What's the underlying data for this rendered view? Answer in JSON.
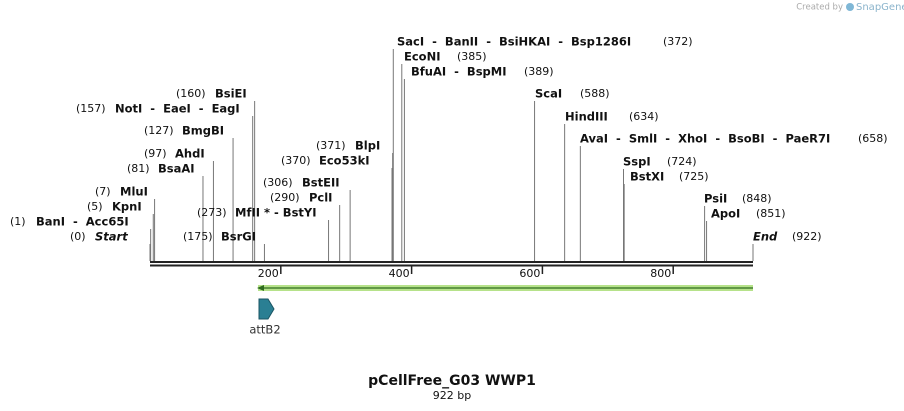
{
  "credit": {
    "prefix": "Created by",
    "brand": "SnapGene"
  },
  "title": "pCellFree_G03 WWP1",
  "length": "922 bp",
  "start": {
    "label": "Start",
    "position": {
      "value": 0,
      "label": "(0)"
    }
  },
  "end": {
    "label": "End",
    "position": {
      "value": 922,
      "label": "(922)"
    }
  },
  "ruler": {
    "ticks": [
      200,
      400,
      600,
      800
    ]
  },
  "features": [
    {
      "name": "attB2"
    }
  ],
  "sites": [
    {
      "label": "BanI  -  Acc65I",
      "position": {
        "value": 1,
        "label": "(1)"
      }
    },
    {
      "label": "KpnI",
      "position": {
        "value": 5,
        "label": "(5)"
      }
    },
    {
      "label": "MluI",
      "position": {
        "value": 7,
        "label": "(7)"
      }
    },
    {
      "label": "BsaAI",
      "position": {
        "value": 81,
        "label": "(81)"
      }
    },
    {
      "label": "AhdI",
      "position": {
        "value": 97,
        "label": "(97)"
      }
    },
    {
      "label": "BmgBI",
      "position": {
        "value": 127,
        "label": "(127)"
      }
    },
    {
      "label": "NotI  -  EaeI  -  EagI",
      "position": {
        "value": 157,
        "label": "(157)"
      }
    },
    {
      "label": "BsiEI",
      "position": {
        "value": 160,
        "label": "(160)"
      }
    },
    {
      "label": "BsrGI",
      "position": {
        "value": 175,
        "label": "(175)"
      }
    },
    {
      "label": "MfII * - BstYI",
      "position": {
        "value": 273,
        "label": "(273)"
      }
    },
    {
      "label": "PclI",
      "position": {
        "value": 290,
        "label": "(290)"
      }
    },
    {
      "label": "BstEII",
      "position": {
        "value": 306,
        "label": "(306)"
      }
    },
    {
      "label": "Eco53kI",
      "position": {
        "value": 370,
        "label": "(370)"
      }
    },
    {
      "label": "BlpI",
      "position": {
        "value": 371,
        "label": "(371)"
      }
    },
    {
      "label": "SacI  -  BanII  -  BsiHKAI  -  Bsp1286I",
      "position": {
        "value": 372,
        "label": "(372)"
      }
    },
    {
      "label": "EcoNI",
      "position": {
        "value": 385,
        "label": "(385)"
      }
    },
    {
      "label": "BfuAI  -  BspMI",
      "position": {
        "value": 389,
        "label": "(389)"
      }
    },
    {
      "label": "ScaI",
      "position": {
        "value": 588,
        "label": "(588)"
      }
    },
    {
      "label": "HindIII",
      "position": {
        "value": 634,
        "label": "(634)"
      }
    },
    {
      "label": "AvaI  -  SmlI  -  XhoI  -  BsoBI  -  PaeR7I",
      "position": {
        "value": 658,
        "label": "(658)"
      }
    },
    {
      "label": "SspI",
      "position": {
        "value": 724,
        "label": "(724)"
      }
    },
    {
      "label": "BstXI",
      "position": {
        "value": 725,
        "label": "(725)"
      }
    },
    {
      "label": "PsiI",
      "position": {
        "value": 848,
        "label": "(848)"
      }
    },
    {
      "label": "ApoI",
      "position": {
        "value": 851,
        "label": "(851)"
      }
    }
  ]
}
